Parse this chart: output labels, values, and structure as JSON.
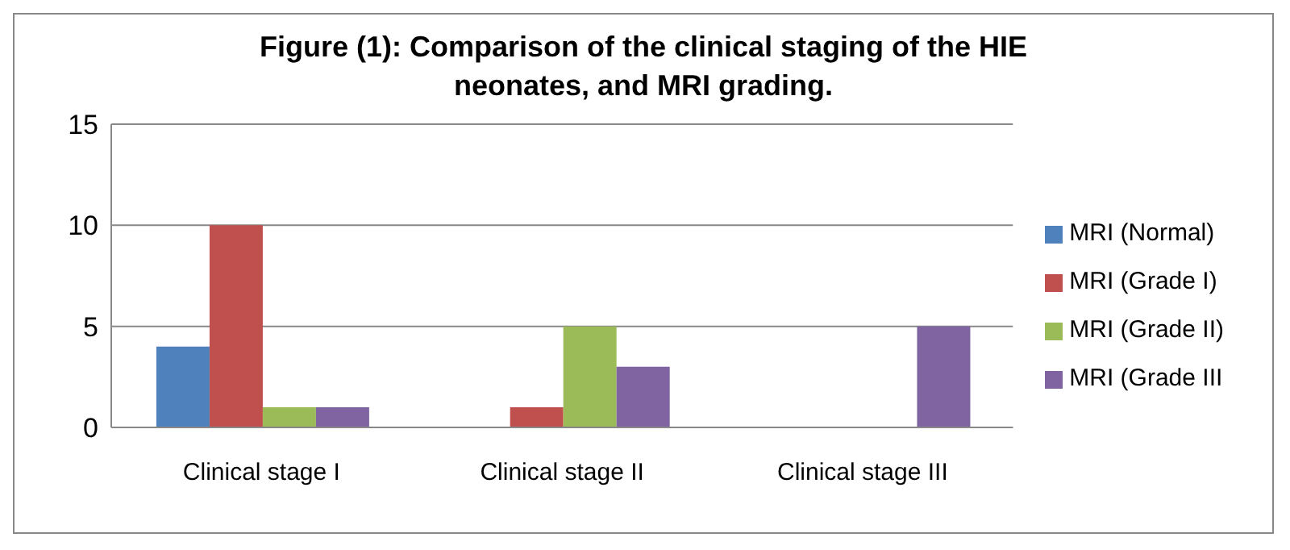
{
  "chart_data": {
    "type": "bar",
    "title": "Figure (1):  Comparison of the clinical staging of the HIE neonates, and MRI grading.",
    "categories": [
      "Clinical stage I",
      "Clinical stage II",
      "Clinical stage III"
    ],
    "series": [
      {
        "name": "MRI (Normal)",
        "color": "#4f81bd",
        "values": [
          4,
          0,
          0
        ]
      },
      {
        "name": "MRI (Grade I)",
        "color": "#c0504d",
        "values": [
          10,
          1,
          0
        ]
      },
      {
        "name": "MRI (Grade II)",
        "color": "#9bbb59",
        "values": [
          1,
          5,
          0
        ]
      },
      {
        "name": "MRI (Grade III",
        "color": "#8064a2",
        "values": [
          1,
          3,
          5
        ]
      }
    ],
    "ylim": [
      0,
      15
    ],
    "yticks": [
      0,
      5,
      10,
      15
    ],
    "grid": "y",
    "legend": "right"
  }
}
